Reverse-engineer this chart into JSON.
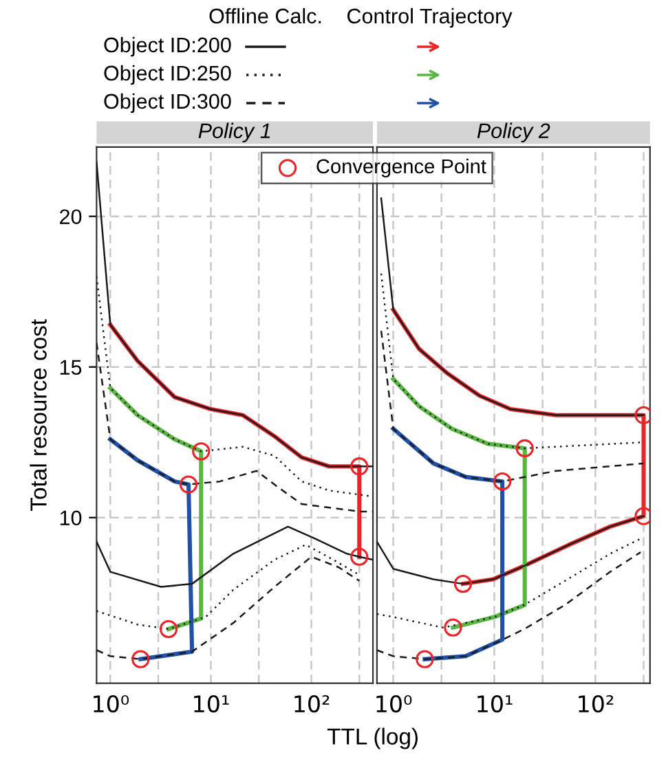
{
  "chart_data": [
    {
      "type": "line",
      "title": "Policy 1",
      "xlabel": "TTL (log)",
      "ylabel": "Total resource cost",
      "annotations": [
        "Offline Calc.",
        "Control Trajectory"
      ],
      "log": "x",
      "xlim": [
        0.73,
        410
      ],
      "ylim": [
        4.5,
        22.3
      ],
      "xticks": [
        {
          "value": 1,
          "label": "10⁰"
        },
        {
          "value": 3,
          "label": null
        },
        {
          "value": 10,
          "label": "10¹"
        },
        {
          "value": 30,
          "label": null
        },
        {
          "value": 100,
          "label": "10²"
        },
        {
          "value": 300,
          "label": null
        }
      ],
      "yticks": [
        10,
        15,
        20
      ],
      "grid": true,
      "legend": "top left",
      "series": [
        {
          "name": "Object ID:200",
          "color": "#1a1a1a",
          "line_style": "solid",
          "x": [
            0.73,
            1,
            1.87,
            4.36,
            10,
            20.8,
            43,
            80,
            150,
            300,
            410
          ],
          "values": [
            21.8,
            16.4,
            15.2,
            14.0,
            13.6,
            13.4,
            12.7,
            12.0,
            11.7,
            11.7,
            11.7
          ]
        },
        {
          "color": "#1a1a1a",
          "line_style": "solid",
          "x": [
            0.73,
            1,
            3.2,
            6.5,
            16.7,
            58.5,
            109,
            226,
            300,
            410
          ],
          "values": [
            9.2,
            8.2,
            7.7,
            7.8,
            8.8,
            9.7,
            9.3,
            8.8,
            8.7,
            8.6
          ]
        },
        {
          "name": "Object ID:250",
          "color": "#1a1a1a",
          "line_style": "dotted",
          "x": [
            0.73,
            1,
            1.87,
            4.36,
            8,
            20.8,
            43,
            80,
            150,
            410
          ],
          "values": [
            18.0,
            14.3,
            13.4,
            12.6,
            12.2,
            12.35,
            12.05,
            11.2,
            10.9,
            10.7
          ]
        },
        {
          "color": "#1a1a1a",
          "line_style": "dotted",
          "x": [
            0.73,
            1.87,
            3.8,
            8.9,
            16.7,
            43,
            88,
            165,
            300
          ],
          "values": [
            6.9,
            6.45,
            6.3,
            6.7,
            7.6,
            8.6,
            9.1,
            8.6,
            8.1
          ]
        },
        {
          "name": "Object ID:300",
          "color": "#1a1a1a",
          "line_style": "dashed",
          "x": [
            0.73,
            1,
            1.87,
            4.36,
            6,
            12.3,
            28.5,
            47,
            80,
            310,
            410
          ],
          "values": [
            15.8,
            12.6,
            11.9,
            11.2,
            11.1,
            11.2,
            11.55,
            11.0,
            10.45,
            10.2,
            10.2
          ]
        },
        {
          "color": "#1a1a1a",
          "line_style": "dashed",
          "x": [
            0.73,
            1,
            2,
            6.5,
            16.7,
            43,
            100,
            187,
            300
          ],
          "values": [
            5.6,
            5.4,
            5.3,
            5.55,
            6.5,
            7.7,
            8.7,
            8.35,
            7.9
          ]
        },
        {
          "color": "#e8262a",
          "line_style": "solid",
          "x": [
            1,
            1.87,
            4.36,
            10,
            20.8,
            43,
            80,
            150,
            300,
            300
          ],
          "values": [
            16.4,
            15.2,
            14.0,
            13.6,
            13.4,
            12.7,
            12.0,
            11.7,
            11.7,
            8.7
          ]
        },
        {
          "color": "#5bb543",
          "line_style": "solid",
          "x": [
            1,
            1.87,
            4.36,
            8,
            8,
            3.8
          ],
          "values": [
            14.3,
            13.4,
            12.6,
            12.2,
            6.65,
            6.3
          ]
        },
        {
          "color": "#2151a6",
          "line_style": "solid",
          "x": [
            1,
            1.87,
            4.36,
            6,
            6.5,
            2
          ],
          "values": [
            12.6,
            11.9,
            11.2,
            11.1,
            5.55,
            5.3
          ]
        },
        {
          "type": "scatter",
          "color": "#e8262a",
          "marker": "circle",
          "x": [
            8,
            6,
            300,
            300,
            3.8,
            2
          ],
          "values": [
            12.2,
            11.1,
            11.7,
            8.7,
            6.3,
            5.3
          ]
        }
      ]
    },
    {
      "type": "line",
      "title": "Policy 2",
      "log": "x",
      "xlim": [
        0.69,
        347
      ],
      "ylim": [
        4.5,
        22.3
      ],
      "tick_labels": "x",
      "xticks": [
        {
          "value": 1,
          "label": "10⁰"
        },
        {
          "value": 3,
          "label": null
        },
        {
          "value": 10,
          "label": "10¹"
        },
        {
          "value": 30,
          "label": null
        },
        {
          "value": 100,
          "label": "10²"
        },
        {
          "value": 300,
          "label": null
        }
      ],
      "yticks": [
        10,
        15,
        20
      ],
      "grid": true,
      "legend": "top left",
      "series": [
        {
          "color": "#1a1a1a",
          "line_style": "solid",
          "x": [
            0.76,
            1,
            1.8,
            3.4,
            7.1,
            14.5,
            40.6,
            300
          ],
          "values": [
            20.6,
            16.9,
            15.6,
            14.8,
            14.05,
            13.6,
            13.4,
            13.4
          ]
        },
        {
          "color": "#1a1a1a",
          "line_style": "solid",
          "x": [
            0.69,
            1,
            2.5,
            4.9,
            9.7,
            19.8,
            55,
            140,
            300
          ],
          "values": [
            9.2,
            8.3,
            7.95,
            7.8,
            7.95,
            8.4,
            9.1,
            9.7,
            10.05
          ]
        },
        {
          "color": "#1a1a1a",
          "line_style": "dotted",
          "x": [
            0.76,
            1,
            1.8,
            3.8,
            8.6,
            20,
            300
          ],
          "values": [
            18.1,
            14.6,
            13.7,
            12.95,
            12.45,
            12.3,
            12.5
          ]
        },
        {
          "color": "#1a1a1a",
          "line_style": "dotted",
          "x": [
            0.69,
            1,
            3.1,
            10,
            19.8,
            50,
            140,
            280
          ],
          "values": [
            6.8,
            6.7,
            6.35,
            6.7,
            7.1,
            7.9,
            8.8,
            9.3
          ]
        },
        {
          "color": "#1a1a1a",
          "line_style": "dashed",
          "x": [
            0.76,
            1,
            2.5,
            5.2,
            12,
            40.6,
            300
          ],
          "values": [
            16.2,
            12.95,
            11.8,
            11.35,
            11.2,
            11.55,
            11.8
          ]
        },
        {
          "color": "#1a1a1a",
          "line_style": "dashed",
          "x": [
            0.69,
            1,
            2.05,
            5.2,
            11.3,
            19.8,
            50,
            140,
            280
          ],
          "values": [
            5.6,
            5.4,
            5.3,
            5.4,
            5.9,
            6.3,
            7.1,
            8.2,
            8.85
          ]
        },
        {
          "color": "#e8262a",
          "line_style": "solid",
          "x": [
            1,
            1.8,
            3.4,
            7.1,
            14.5,
            40.6,
            300,
            300,
            140,
            55,
            19.8,
            9.7,
            4.9
          ],
          "values": [
            16.9,
            15.6,
            14.8,
            14.05,
            13.6,
            13.4,
            13.4,
            10.05,
            9.7,
            9.1,
            8.4,
            7.95,
            7.8
          ]
        },
        {
          "color": "#5bb543",
          "line_style": "solid",
          "x": [
            1,
            1.8,
            3.8,
            8.6,
            20,
            20,
            10,
            3.9
          ],
          "values": [
            14.6,
            13.7,
            12.95,
            12.45,
            12.3,
            7.1,
            6.7,
            6.35
          ]
        },
        {
          "color": "#2151a6",
          "line_style": "solid",
          "x": [
            1,
            2.5,
            5.2,
            12,
            12,
            5.2,
            2.05
          ],
          "values": [
            12.95,
            11.8,
            11.35,
            11.2,
            5.95,
            5.4,
            5.3
          ]
        },
        {
          "type": "scatter",
          "name": "Convergence Point",
          "color": "#e8262a",
          "marker": "circle",
          "x": [
            20,
            12,
            300,
            300,
            4.9,
            3.9,
            2.05
          ],
          "values": [
            12.3,
            11.2,
            13.4,
            10.05,
            7.8,
            6.35,
            5.3
          ]
        }
      ]
    }
  ]
}
